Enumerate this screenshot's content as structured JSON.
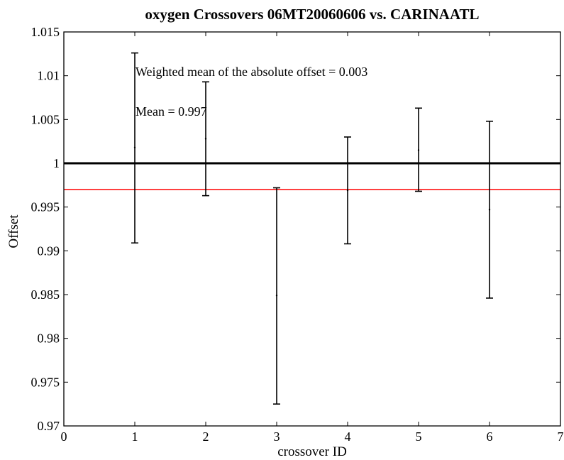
{
  "chart_data": {
    "type": "scatter",
    "title": "oxygen Crossovers 06MT20060606 vs. CARINAATL",
    "xlabel": "crossover ID",
    "ylabel": "Offset",
    "xlim": [
      0,
      7
    ],
    "ylim": [
      0.97,
      1.015
    ],
    "xticks": [
      "0",
      "1",
      "2",
      "3",
      "4",
      "5",
      "6",
      "7"
    ],
    "yticks": [
      "0.97",
      "0.975",
      "0.98",
      "0.985",
      "0.99",
      "0.995",
      "1",
      "1.005",
      "1.01",
      "1.015"
    ],
    "grid": false,
    "points": [
      {
        "x": 1,
        "y": 1.0018,
        "low": 0.9909,
        "high": 1.0126
      },
      {
        "x": 2,
        "y": 1.0028,
        "low": 0.9963,
        "high": 1.0093
      },
      {
        "x": 3,
        "y": 0.9849,
        "low": 0.9725,
        "high": 0.9972
      },
      {
        "x": 4,
        "y": 0.9969,
        "low": 0.9908,
        "high": 1.003
      },
      {
        "x": 5,
        "y": 1.0015,
        "low": 0.9968,
        "high": 1.0063
      },
      {
        "x": 6,
        "y": 0.9947,
        "low": 0.9846,
        "high": 1.0048
      }
    ],
    "reference_lines": [
      {
        "y": 1.0,
        "color": "#000000"
      },
      {
        "y": 0.997,
        "color": "#ff0000"
      }
    ],
    "annotations": [
      "Weighted mean of the absolute offset = 0.003",
      "Mean = 0.997"
    ],
    "colors": {
      "errorbar": "#000000",
      "reference": "#000000",
      "mean": "#ff0000"
    }
  }
}
